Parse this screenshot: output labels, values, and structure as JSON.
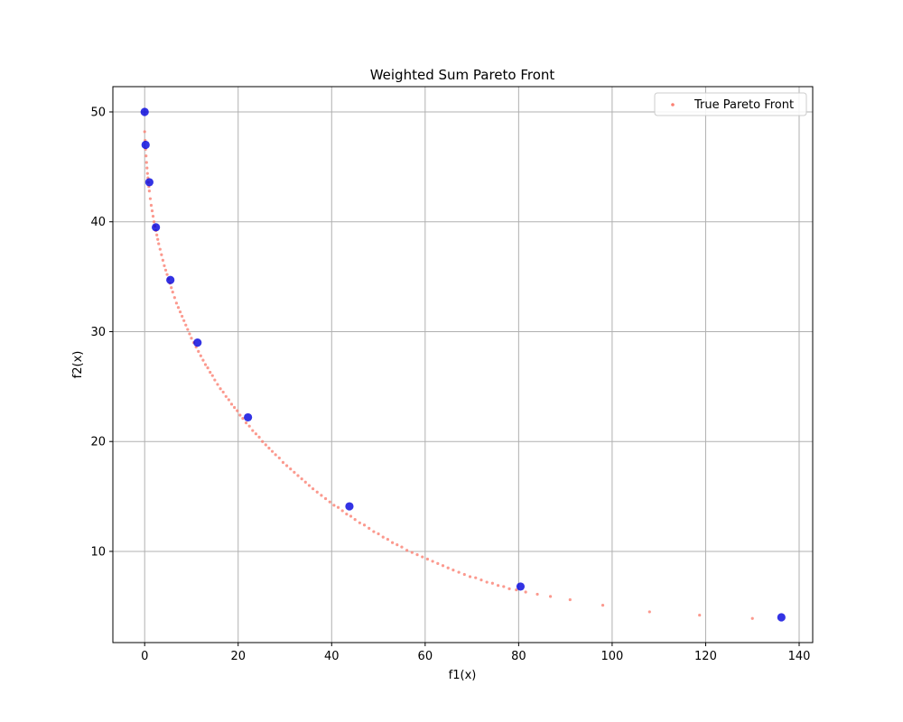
{
  "chart_data": {
    "type": "scatter",
    "title": "Weighted Sum Pareto Front",
    "xlabel": "f1(x)",
    "ylabel": "f2(x)",
    "xlim": [
      -6.8,
      142.9
    ],
    "ylim": [
      1.7,
      52.3
    ],
    "xticks": [
      0,
      20,
      40,
      60,
      80,
      100,
      120,
      140
    ],
    "yticks": [
      10,
      20,
      30,
      40,
      50
    ],
    "grid": true,
    "legend_position": "top-right",
    "series": [
      {
        "name": "True Pareto Front",
        "color": "#fa8072",
        "marker": "small-dot",
        "x": [
          0.0,
          0.1,
          0.2,
          0.3,
          0.4,
          0.5,
          0.6,
          0.7,
          0.8,
          0.9,
          1.0,
          1.2,
          1.4,
          1.6,
          1.8,
          2.0,
          2.2,
          2.4,
          2.6,
          2.8,
          3.0,
          3.3,
          3.6,
          3.9,
          4.2,
          4.5,
          4.8,
          5.1,
          5.4,
          5.7,
          6.0,
          6.4,
          6.8,
          7.2,
          7.6,
          8.0,
          8.4,
          8.8,
          9.2,
          9.6,
          10.0,
          10.5,
          11.0,
          11.5,
          12.0,
          12.5,
          13.0,
          13.5,
          14.0,
          14.5,
          15.0,
          15.6,
          16.2,
          16.8,
          17.4,
          18.0,
          18.6,
          19.2,
          19.8,
          20.4,
          21.0,
          21.7,
          22.4,
          23.1,
          23.8,
          24.5,
          25.2,
          25.9,
          26.6,
          27.3,
          28.0,
          28.8,
          29.6,
          30.4,
          31.2,
          32.0,
          32.8,
          33.6,
          34.4,
          35.2,
          36.0,
          36.9,
          37.8,
          38.7,
          39.6,
          40.5,
          41.4,
          42.3,
          43.2,
          44.1,
          45.0,
          46.0,
          47.0,
          48.0,
          49.0,
          50.0,
          51.0,
          52.0,
          53.0,
          54.0,
          55.0,
          56.1,
          57.2,
          58.3,
          59.4,
          60.5,
          61.6,
          62.7,
          63.8,
          64.9,
          66.0,
          67.2,
          68.4,
          69.6,
          70.8,
          72.0,
          73.2,
          74.4,
          75.6,
          76.8,
          78.0,
          79.5,
          81.5,
          84.0,
          86.8,
          91.0,
          98.0,
          108.0,
          118.7,
          130.0
        ],
        "y": [
          48.2,
          47.4,
          46.6,
          46.0,
          45.4,
          44.9,
          44.4,
          44.0,
          43.6,
          43.2,
          42.8,
          42.1,
          41.5,
          41.0,
          40.5,
          40.0,
          39.6,
          39.2,
          38.8,
          38.4,
          38.0,
          37.5,
          37.0,
          36.5,
          36.0,
          35.6,
          35.2,
          34.8,
          34.4,
          34.0,
          33.6,
          33.1,
          32.6,
          32.2,
          31.8,
          31.4,
          31.0,
          30.6,
          30.2,
          29.8,
          29.4,
          29.0,
          28.6,
          28.2,
          27.8,
          27.4,
          27.0,
          26.7,
          26.3,
          26.0,
          25.6,
          25.2,
          24.8,
          24.5,
          24.1,
          23.8,
          23.4,
          23.1,
          22.8,
          22.4,
          22.1,
          21.7,
          21.4,
          21.0,
          20.7,
          20.4,
          20.0,
          19.7,
          19.4,
          19.1,
          18.8,
          18.5,
          18.1,
          17.8,
          17.5,
          17.2,
          16.9,
          16.6,
          16.3,
          16.0,
          15.7,
          15.4,
          15.1,
          14.8,
          14.5,
          14.2,
          14.0,
          13.7,
          13.4,
          13.2,
          12.9,
          12.6,
          12.4,
          12.1,
          11.8,
          11.6,
          11.3,
          11.1,
          10.8,
          10.6,
          10.4,
          10.1,
          9.9,
          9.7,
          9.5,
          9.3,
          9.1,
          8.9,
          8.7,
          8.5,
          8.3,
          8.1,
          7.9,
          7.7,
          7.6,
          7.4,
          7.2,
          7.1,
          6.9,
          6.8,
          6.6,
          6.5,
          6.3,
          6.1,
          5.9,
          5.6,
          5.1,
          4.5,
          4.2,
          3.9
        ]
      },
      {
        "color": "#0000dd",
        "marker": "dot",
        "x": [
          0.0,
          0.2,
          1.0,
          2.4,
          5.5,
          11.3,
          22.1,
          43.8,
          80.4,
          136.2
        ],
        "y": [
          50.0,
          47.0,
          43.6,
          39.5,
          34.7,
          29.0,
          22.2,
          14.1,
          6.8,
          4.0
        ]
      }
    ]
  }
}
